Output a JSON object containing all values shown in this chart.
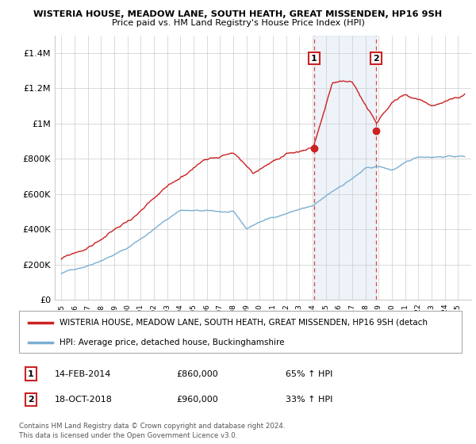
{
  "title1": "WISTERIA HOUSE, MEADOW LANE, SOUTH HEATH, GREAT MISSENDEN, HP16 9SH",
  "title2": "Price paid vs. HM Land Registry's House Price Index (HPI)",
  "ylabel_ticks": [
    "£0",
    "£200K",
    "£400K",
    "£600K",
    "£800K",
    "£1M",
    "£1.2M",
    "£1.4M"
  ],
  "ytick_values": [
    0,
    200000,
    400000,
    600000,
    800000,
    1000000,
    1200000,
    1400000
  ],
  "ylim": [
    0,
    1500000
  ],
  "legend_line1": "WISTERIA HOUSE, MEADOW LANE, SOUTH HEATH, GREAT MISSENDEN, HP16 9SH (detach",
  "legend_line2": "HPI: Average price, detached house, Buckinghamshire",
  "transaction1_label": "1",
  "transaction1_date": "14-FEB-2014",
  "transaction1_price": "£860,000",
  "transaction1_hpi": "65% ↑ HPI",
  "transaction1_year": 2014.12,
  "transaction1_value": 860000,
  "transaction2_label": "2",
  "transaction2_date": "18-OCT-2018",
  "transaction2_price": "£960,000",
  "transaction2_hpi": "33% ↑ HPI",
  "transaction2_year": 2018.8,
  "transaction2_value": 960000,
  "footnote1": "Contains HM Land Registry data © Crown copyright and database right 2024.",
  "footnote2": "This data is licensed under the Open Government Licence v3.0.",
  "hpi_color": "#7bafd4",
  "price_color": "#cc2222",
  "shading_color": "#ccdded",
  "background_color": "#ffffff",
  "grid_color": "#cccccc"
}
